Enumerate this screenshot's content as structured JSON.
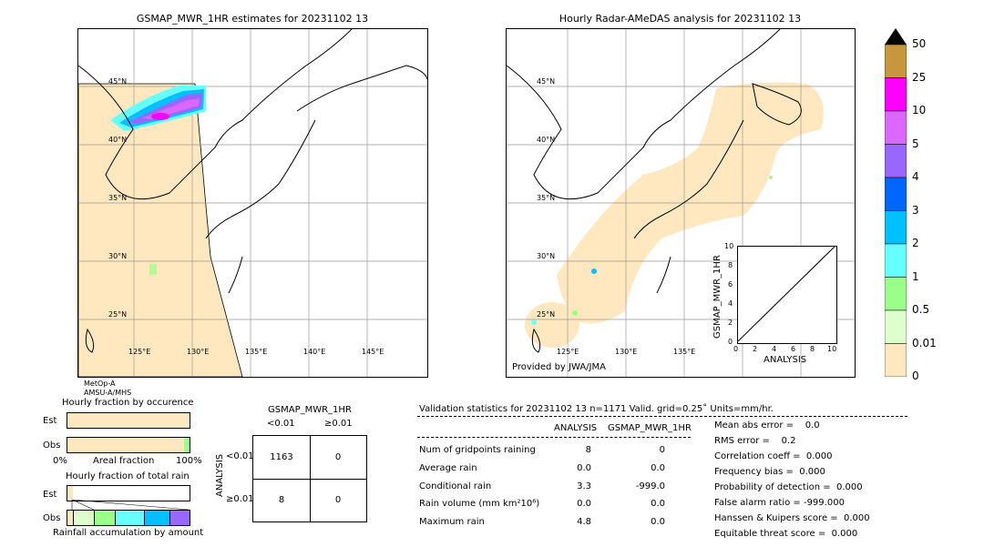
{
  "left_map": {
    "title": "GSMAP_MWR_1HR estimates for 20231102 13",
    "lat_labels": [
      "45°N",
      "40°N",
      "35°N",
      "30°N",
      "25°N"
    ],
    "lon_labels": [
      "125°E",
      "130°E",
      "135°E",
      "140°E",
      "145°E"
    ],
    "satellite_label_1": "MetOp-A",
    "satellite_label_2": "AMSU-A/MHS"
  },
  "right_map": {
    "title": "Hourly Radar-AMeDAS analysis for 20231102 13",
    "lat_labels": [
      "45°N",
      "40°N",
      "35°N",
      "30°N",
      "25°N"
    ],
    "lon_labels": [
      "125°E",
      "130°E",
      "135°E"
    ],
    "provider": "Provided by JWA/JMA"
  },
  "colorbar": {
    "labels": [
      "50",
      "25",
      "10",
      "5",
      "4",
      "3",
      "2",
      "1",
      "0.5",
      "0.01",
      "0"
    ],
    "colors": [
      "#c8963c",
      "#ff00ff",
      "#dd66ff",
      "#9966ff",
      "#0066ff",
      "#00c0ff",
      "#66ffff",
      "#99ff88",
      "#ddffcc",
      "#ffe8c0"
    ]
  },
  "inset": {
    "ylabel": "GSMAP_MWR_1HR",
    "xlabel": "ANALYSIS",
    "ticks": [
      "0",
      "2",
      "4",
      "6",
      "8",
      "10"
    ],
    "ticks_y": [
      "0",
      "2",
      "4",
      "6",
      "8",
      "10"
    ]
  },
  "fraction_charts": {
    "occ_title": "Hourly fraction by occurence",
    "total_title": "Hourly fraction of total rain",
    "est_label": "Est",
    "obs_label": "Obs",
    "axis_left": "0%",
    "axis_mid": "Areal fraction",
    "axis_right": "100%",
    "bottom_label": "Rainfall accumulation by amount"
  },
  "contingency": {
    "title": "GSMAP_MWR_1HR",
    "col1": "<0.01",
    "col2": "≥0.01",
    "row_axis": "ANALYSIS",
    "row1": "<0.01",
    "row2": "≥0.01",
    "cells": [
      "1163",
      "0",
      "8",
      "0"
    ]
  },
  "validation": {
    "header": "Validation statistics for 20231102 13  n=1171 Valid. grid=0.25˚ Units=mm/hr.",
    "col_analysis": "ANALYSIS",
    "col_gsmap": "GSMAP_MWR_1HR",
    "rows": [
      {
        "label": "Num of gridpoints raining",
        "analysis": "8",
        "gsmap": "0"
      },
      {
        "label": "Average rain",
        "analysis": "0.0",
        "gsmap": "0.0"
      },
      {
        "label": "Conditional rain",
        "analysis": "3.3",
        "gsmap": "-999.0"
      },
      {
        "label": "Rain volume (mm km²10⁶)",
        "analysis": "0.0",
        "gsmap": "0.0"
      },
      {
        "label": "Maximum rain",
        "analysis": "4.8",
        "gsmap": "0.0"
      }
    ],
    "scores": [
      "Mean abs error =    0.0",
      "RMS error =    0.2",
      "Correlation coeff =  0.000",
      "Frequency bias =  0.000",
      "Probability of detection =  0.000",
      "False alarm ratio = -999.000",
      "Hanssen & Kuipers score =  0.000",
      "Equitable threat score =  0.000"
    ]
  },
  "chart_data": {
    "type": "scatter",
    "title": "",
    "xlabel": "ANALYSIS",
    "ylabel": "GSMAP_MWR_1HR",
    "xlim": [
      0,
      10
    ],
    "ylim": [
      0,
      10
    ],
    "series": [
      {
        "type": "line",
        "x": [
          0,
          10
        ],
        "y": [
          0,
          10
        ]
      }
    ]
  }
}
